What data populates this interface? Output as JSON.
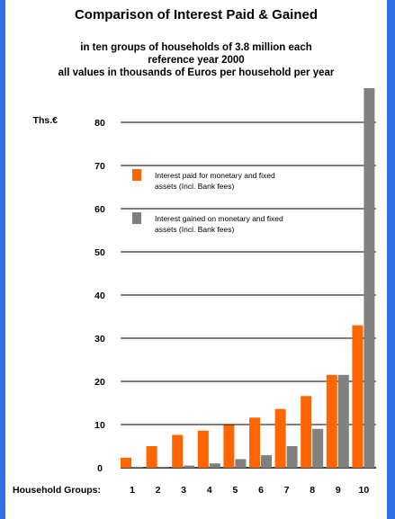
{
  "chart_data": {
    "type": "bar",
    "title": "Comparison of Interest Paid & Gained",
    "subtitle_lines": [
      "in ten groups of households of 3.8 million each",
      "reference year 2000",
      "all values in thousands of Euros per household per year"
    ],
    "ylabel": "Ths.€",
    "xlabel": "Household Groups:",
    "categories": [
      "1",
      "2",
      "3",
      "4",
      "5",
      "6",
      "7",
      "8",
      "9",
      "10"
    ],
    "ylim": [
      0,
      88
    ],
    "yticks": [
      0,
      10,
      20,
      30,
      40,
      50,
      60,
      70,
      80
    ],
    "grid": true,
    "legend_position": "top-left",
    "series": [
      {
        "name": "Interest paid for monetary and fixed assets (Incl. Bank fees)",
        "legend_lines": [
          "Interest paid for monetary and fixed",
          "assets (Incl. Bank fees)"
        ],
        "color": "#ff6600",
        "values": [
          2.3,
          5,
          7.6,
          8.6,
          9.9,
          11.6,
          13.6,
          16.6,
          21.5,
          33
        ]
      },
      {
        "name": "Interest gained on monetary and fixed assets (Incl. Bank fees)",
        "legend_lines": [
          "Interest gained on monetary and fixed",
          "assets (Incl. Bank fees)"
        ],
        "color": "#808080",
        "values": [
          0.1,
          0.1,
          0.5,
          1,
          2,
          2.9,
          5,
          9,
          21.5,
          88
        ]
      }
    ]
  }
}
